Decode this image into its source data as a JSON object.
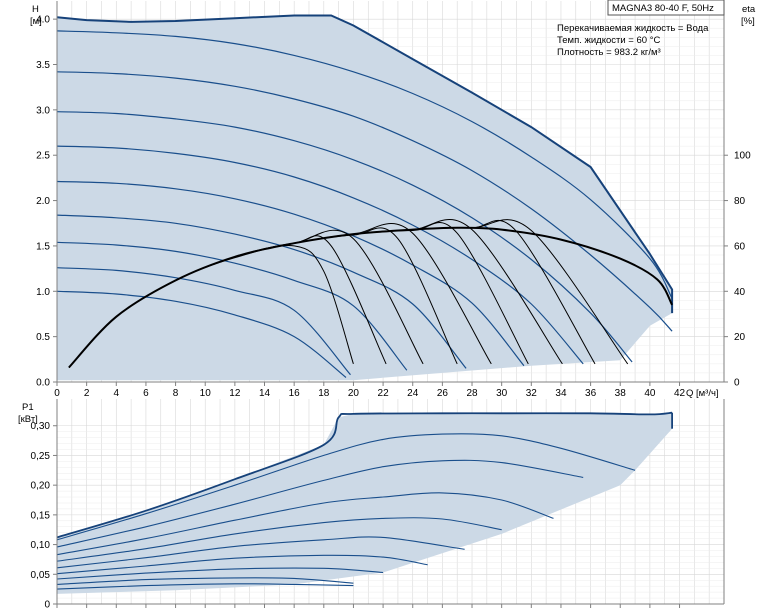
{
  "title": "MAGNA3 80-40 F, 50Hz",
  "conditions": [
    "Перекачиваемая жидкость = Вода",
    "Темп. жидкости = 60 °C",
    "Плотность = 983.2 кг/м³"
  ],
  "colors": {
    "fill": "#ccd9e6",
    "curve": "#1a4f8c",
    "envelope": "#16427a",
    "efficiency": "#000000",
    "grid": "#d8d8d8",
    "axis": "#808080"
  },
  "chart_data": [
    {
      "type": "line",
      "name": "head",
      "ylabel": "H",
      "yunit": "[м]",
      "xlabel": "Q",
      "xunit": "[м³/ч]",
      "xlim": [
        0,
        45
      ],
      "ylim": [
        0,
        4.2
      ],
      "xticks": [
        0,
        2,
        4,
        6,
        8,
        10,
        12,
        14,
        16,
        18,
        20,
        22,
        24,
        26,
        28,
        30,
        32,
        34,
        36,
        38,
        40,
        42
      ],
      "xtick_labels": [
        "0",
        "2",
        "4",
        "6",
        "8",
        "10",
        "12",
        "14",
        "16",
        "18",
        "20",
        "22",
        "24",
        "26",
        "28",
        "30",
        "32",
        "34",
        "36",
        "38",
        "40",
        "42"
      ],
      "yticks": [
        0,
        0.5,
        1.0,
        1.5,
        2.0,
        2.5,
        3.0,
        3.5,
        4.0
      ],
      "ytick_labels": [
        "0.0",
        "0.5",
        "1.0",
        "1.5",
        "2.0",
        "2.5",
        "3.0",
        "3.5",
        "4.0"
      ],
      "eta_label": "eta",
      "eta_unit": "[%]",
      "eta_ticks": [
        0,
        20,
        40,
        60,
        80,
        100
      ],
      "eta_tick_labels": [
        "0",
        "20",
        "40",
        "60",
        "80",
        "100"
      ],
      "eta_range_on_head_axis": [
        0,
        2.5
      ],
      "envelope": {
        "x": [
          0,
          2,
          5,
          8,
          12,
          16,
          18.5,
          20,
          24,
          28,
          32,
          36,
          40,
          41.5,
          41.5,
          40,
          38,
          32,
          26,
          20,
          0
        ],
        "y": [
          4.02,
          3.99,
          3.97,
          3.98,
          4.01,
          4.04,
          4.04,
          3.93,
          3.56,
          3.19,
          2.81,
          2.37,
          1.41,
          1.02,
          0.76,
          0.62,
          0.24,
          0.18,
          0.1,
          0.02,
          0.02
        ]
      },
      "series": [
        {
          "x": [
            0,
            4,
            8,
            12,
            16,
            20,
            24,
            28,
            32,
            36,
            40,
            41.5
          ],
          "y": [
            3.87,
            3.85,
            3.81,
            3.73,
            3.6,
            3.42,
            3.18,
            2.87,
            2.48,
            2.01,
            1.36,
            0.92
          ]
        },
        {
          "x": [
            0,
            4,
            8,
            12,
            16,
            20,
            24,
            28,
            32,
            36,
            40,
            41.5
          ],
          "y": [
            3.42,
            3.4,
            3.35,
            3.26,
            3.12,
            2.93,
            2.66,
            2.33,
            1.91,
            1.4,
            0.82,
            0.56
          ]
        },
        {
          "x": [
            0,
            4,
            8,
            12,
            16,
            20,
            24,
            28,
            32,
            36,
            38.8
          ],
          "y": [
            2.98,
            2.96,
            2.9,
            2.81,
            2.66,
            2.45,
            2.17,
            1.81,
            1.35,
            0.76,
            0.22
          ]
        },
        {
          "x": [
            0,
            4,
            8,
            12,
            16,
            20,
            24,
            28,
            32,
            35.5
          ],
          "y": [
            2.6,
            2.58,
            2.52,
            2.42,
            2.26,
            2.03,
            1.73,
            1.35,
            0.86,
            0.2
          ]
        },
        {
          "x": [
            0,
            4,
            8,
            12,
            16,
            20,
            24,
            28,
            31.5
          ],
          "y": [
            2.21,
            2.19,
            2.13,
            2.02,
            1.85,
            1.61,
            1.29,
            0.87,
            0.18
          ]
        },
        {
          "x": [
            0,
            4,
            8,
            12,
            16,
            20,
            24,
            27.6
          ],
          "y": [
            1.84,
            1.81,
            1.75,
            1.63,
            1.46,
            1.21,
            0.86,
            0.15
          ]
        },
        {
          "x": [
            0,
            4,
            8,
            12,
            16,
            20,
            23.6
          ],
          "y": [
            1.54,
            1.51,
            1.44,
            1.31,
            1.12,
            0.84,
            0.13
          ]
        },
        {
          "x": [
            0,
            4,
            8,
            12,
            16,
            19.8
          ],
          "y": [
            1.26,
            1.23,
            1.15,
            1.01,
            0.79,
            0.08
          ]
        },
        {
          "x": [
            0,
            4,
            8,
            12,
            16,
            19.5
          ],
          "y": [
            1.0,
            0.97,
            0.89,
            0.74,
            0.5,
            0.05
          ]
        }
      ],
      "efficiency_series": {
        "x": [
          0.8,
          4,
          8,
          12,
          16,
          20,
          24,
          27,
          30,
          34,
          38,
          40.5,
          41.5
        ],
        "y": [
          0.16,
          0.72,
          1.12,
          1.38,
          1.53,
          1.63,
          1.68,
          1.7,
          1.68,
          1.57,
          1.36,
          1.13,
          0.85
        ]
      },
      "efficiency_curves": [
        {
          "x": [
            0.8,
            4,
            8,
            12,
            16,
            18,
            20
          ],
          "y": [
            0.16,
            0.72,
            1.12,
            1.37,
            1.5,
            1.22,
            0.2
          ]
        },
        {
          "x": [
            0.8,
            4,
            8,
            12,
            16,
            18.5,
            22.2
          ],
          "y": [
            0.16,
            0.72,
            1.12,
            1.38,
            1.53,
            1.5,
            0.2
          ]
        },
        {
          "x": [
            0.8,
            4,
            8,
            12,
            16,
            20,
            24.7
          ],
          "y": [
            0.16,
            0.72,
            1.12,
            1.38,
            1.53,
            1.58,
            0.2
          ]
        },
        {
          "x": [
            0.8,
            4,
            8,
            12,
            16,
            20,
            23,
            27
          ],
          "y": [
            0.16,
            0.72,
            1.12,
            1.38,
            1.53,
            1.62,
            1.58,
            0.2
          ]
        },
        {
          "x": [
            0.8,
            4,
            8,
            12,
            16,
            20,
            24,
            29.3
          ],
          "y": [
            0.16,
            0.72,
            1.12,
            1.38,
            1.53,
            1.63,
            1.64,
            0.2
          ]
        },
        {
          "x": [
            0.8,
            4,
            8,
            12,
            16,
            20,
            24,
            27,
            31.8
          ],
          "y": [
            0.16,
            0.72,
            1.12,
            1.38,
            1.53,
            1.63,
            1.67,
            1.64,
            0.2
          ]
        },
        {
          "x": [
            0.8,
            4,
            8,
            12,
            16,
            20,
            24,
            28,
            34.1
          ],
          "y": [
            0.16,
            0.72,
            1.12,
            1.38,
            1.53,
            1.63,
            1.68,
            1.68,
            0.2
          ]
        },
        {
          "x": [
            0.8,
            4,
            8,
            12,
            16,
            20,
            24,
            28,
            31,
            36.3
          ],
          "y": [
            0.16,
            0.72,
            1.12,
            1.38,
            1.53,
            1.63,
            1.68,
            1.7,
            1.66,
            0.2
          ]
        },
        {
          "x": [
            0.8,
            4,
            8,
            12,
            16,
            20,
            24,
            28,
            32,
            38.5
          ],
          "y": [
            0.16,
            0.72,
            1.12,
            1.38,
            1.53,
            1.63,
            1.68,
            1.7,
            1.67,
            0.2
          ]
        }
      ]
    },
    {
      "type": "line",
      "name": "power",
      "ylabel": "P1",
      "yunit": "[кВт]",
      "xlim": [
        0,
        45
      ],
      "ylim": [
        0,
        0.345
      ],
      "yticks": [
        0,
        0.05,
        0.1,
        0.15,
        0.2,
        0.25,
        0.3
      ],
      "ytick_labels": [
        "0",
        "0,05",
        "0,10",
        "0,15",
        "0,20",
        "0,25",
        "0,30"
      ],
      "envelope": {
        "x": [
          0,
          6,
          12,
          18,
          19,
          20,
          26,
          30,
          36,
          40,
          41.5,
          41.5,
          39,
          38,
          30,
          22,
          16,
          8,
          0
        ],
        "y": [
          0.112,
          0.157,
          0.21,
          0.268,
          0.314,
          0.32,
          0.321,
          0.321,
          0.321,
          0.319,
          0.322,
          0.295,
          0.225,
          0.2,
          0.118,
          0.053,
          0.033,
          0.023,
          0.017
        ]
      },
      "series": [
        {
          "x": [
            0,
            6,
            12,
            18,
            19,
            20,
            26,
            30,
            36,
            40,
            41.5
          ],
          "y": [
            0.112,
            0.157,
            0.21,
            0.268,
            0.314,
            0.32,
            0.321,
            0.321,
            0.321,
            0.319,
            0.322
          ]
        },
        {
          "x": [
            0,
            6,
            12,
            18,
            22,
            26,
            30,
            34,
            39
          ],
          "y": [
            0.108,
            0.152,
            0.2,
            0.25,
            0.277,
            0.286,
            0.283,
            0.262,
            0.225
          ]
        },
        {
          "x": [
            0,
            6,
            12,
            18,
            22,
            26,
            30,
            35.5
          ],
          "y": [
            0.096,
            0.13,
            0.168,
            0.208,
            0.231,
            0.241,
            0.238,
            0.213
          ]
        },
        {
          "x": [
            0,
            6,
            12,
            18,
            22,
            26,
            30,
            33.5
          ],
          "y": [
            0.083,
            0.11,
            0.141,
            0.17,
            0.18,
            0.187,
            0.175,
            0.144
          ]
        },
        {
          "x": [
            0,
            6,
            12,
            18,
            22,
            26,
            30
          ],
          "y": [
            0.072,
            0.093,
            0.118,
            0.137,
            0.144,
            0.143,
            0.125
          ]
        },
        {
          "x": [
            0,
            6,
            12,
            18,
            22,
            27.5
          ],
          "y": [
            0.061,
            0.078,
            0.097,
            0.108,
            0.112,
            0.092
          ]
        },
        {
          "x": [
            0,
            6,
            12,
            18,
            22,
            25
          ],
          "y": [
            0.051,
            0.064,
            0.077,
            0.082,
            0.079,
            0.066
          ]
        },
        {
          "x": [
            0,
            6,
            12,
            18,
            22
          ],
          "y": [
            0.042,
            0.052,
            0.059,
            0.06,
            0.053
          ]
        },
        {
          "x": [
            0,
            6,
            12,
            16,
            20
          ],
          "y": [
            0.033,
            0.041,
            0.044,
            0.043,
            0.035
          ]
        },
        {
          "x": [
            0,
            6,
            12,
            16,
            20
          ],
          "y": [
            0.025,
            0.031,
            0.034,
            0.033,
            0.031
          ]
        }
      ]
    }
  ]
}
